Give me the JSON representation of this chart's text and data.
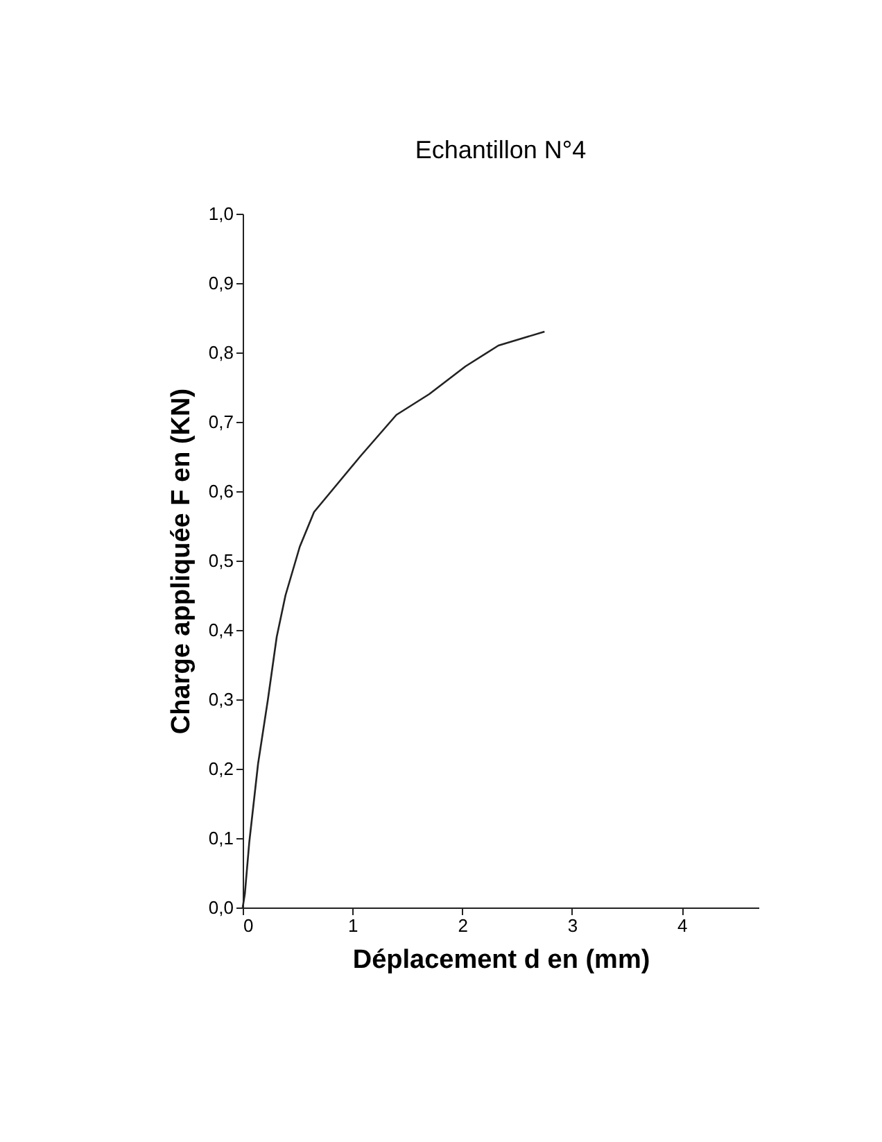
{
  "chart_data": {
    "type": "line",
    "title": "Echantillon N°4",
    "xlabel": "Déplacement d en (mm)",
    "ylabel": "Charge appliquée F en (KN)",
    "x": [
      0,
      0.02,
      0.06,
      0.14,
      0.23,
      0.31,
      0.39,
      0.52,
      0.65,
      0.86,
      1.07,
      1.4,
      1.7,
      2.03,
      2.33,
      2.75
    ],
    "series": [
      {
        "color": "#222222",
        "values": [
          0,
          0.02,
          0.094,
          0.207,
          0.3,
          0.39,
          0.45,
          0.52,
          0.57,
          0.61,
          0.65,
          0.71,
          0.74,
          0.78,
          0.81,
          0.83
        ]
      }
    ],
    "xlim": [
      0,
      4.7
    ],
    "xticks": [
      0,
      1,
      2,
      3,
      4
    ],
    "ylim": [
      0,
      1.0
    ],
    "yticks": [
      {
        "value": 0,
        "label": "0,0"
      },
      {
        "value": 0.1,
        "label": "0,1"
      },
      {
        "value": 0.2,
        "label": "0,2"
      },
      {
        "value": 0.3,
        "label": "0,3"
      },
      {
        "value": 0.4,
        "label": "0,4"
      },
      {
        "value": 0.5,
        "label": "0,5"
      },
      {
        "value": 0.6,
        "label": "0,6"
      },
      {
        "value": 0.7,
        "label": "0,7"
      },
      {
        "value": 0.8,
        "label": "0,8"
      },
      {
        "value": 0.9,
        "label": "0,9"
      },
      {
        "value": 1.0,
        "label": "1,0"
      }
    ],
    "grid": false,
    "marker": "none",
    "line_style": "solid"
  }
}
